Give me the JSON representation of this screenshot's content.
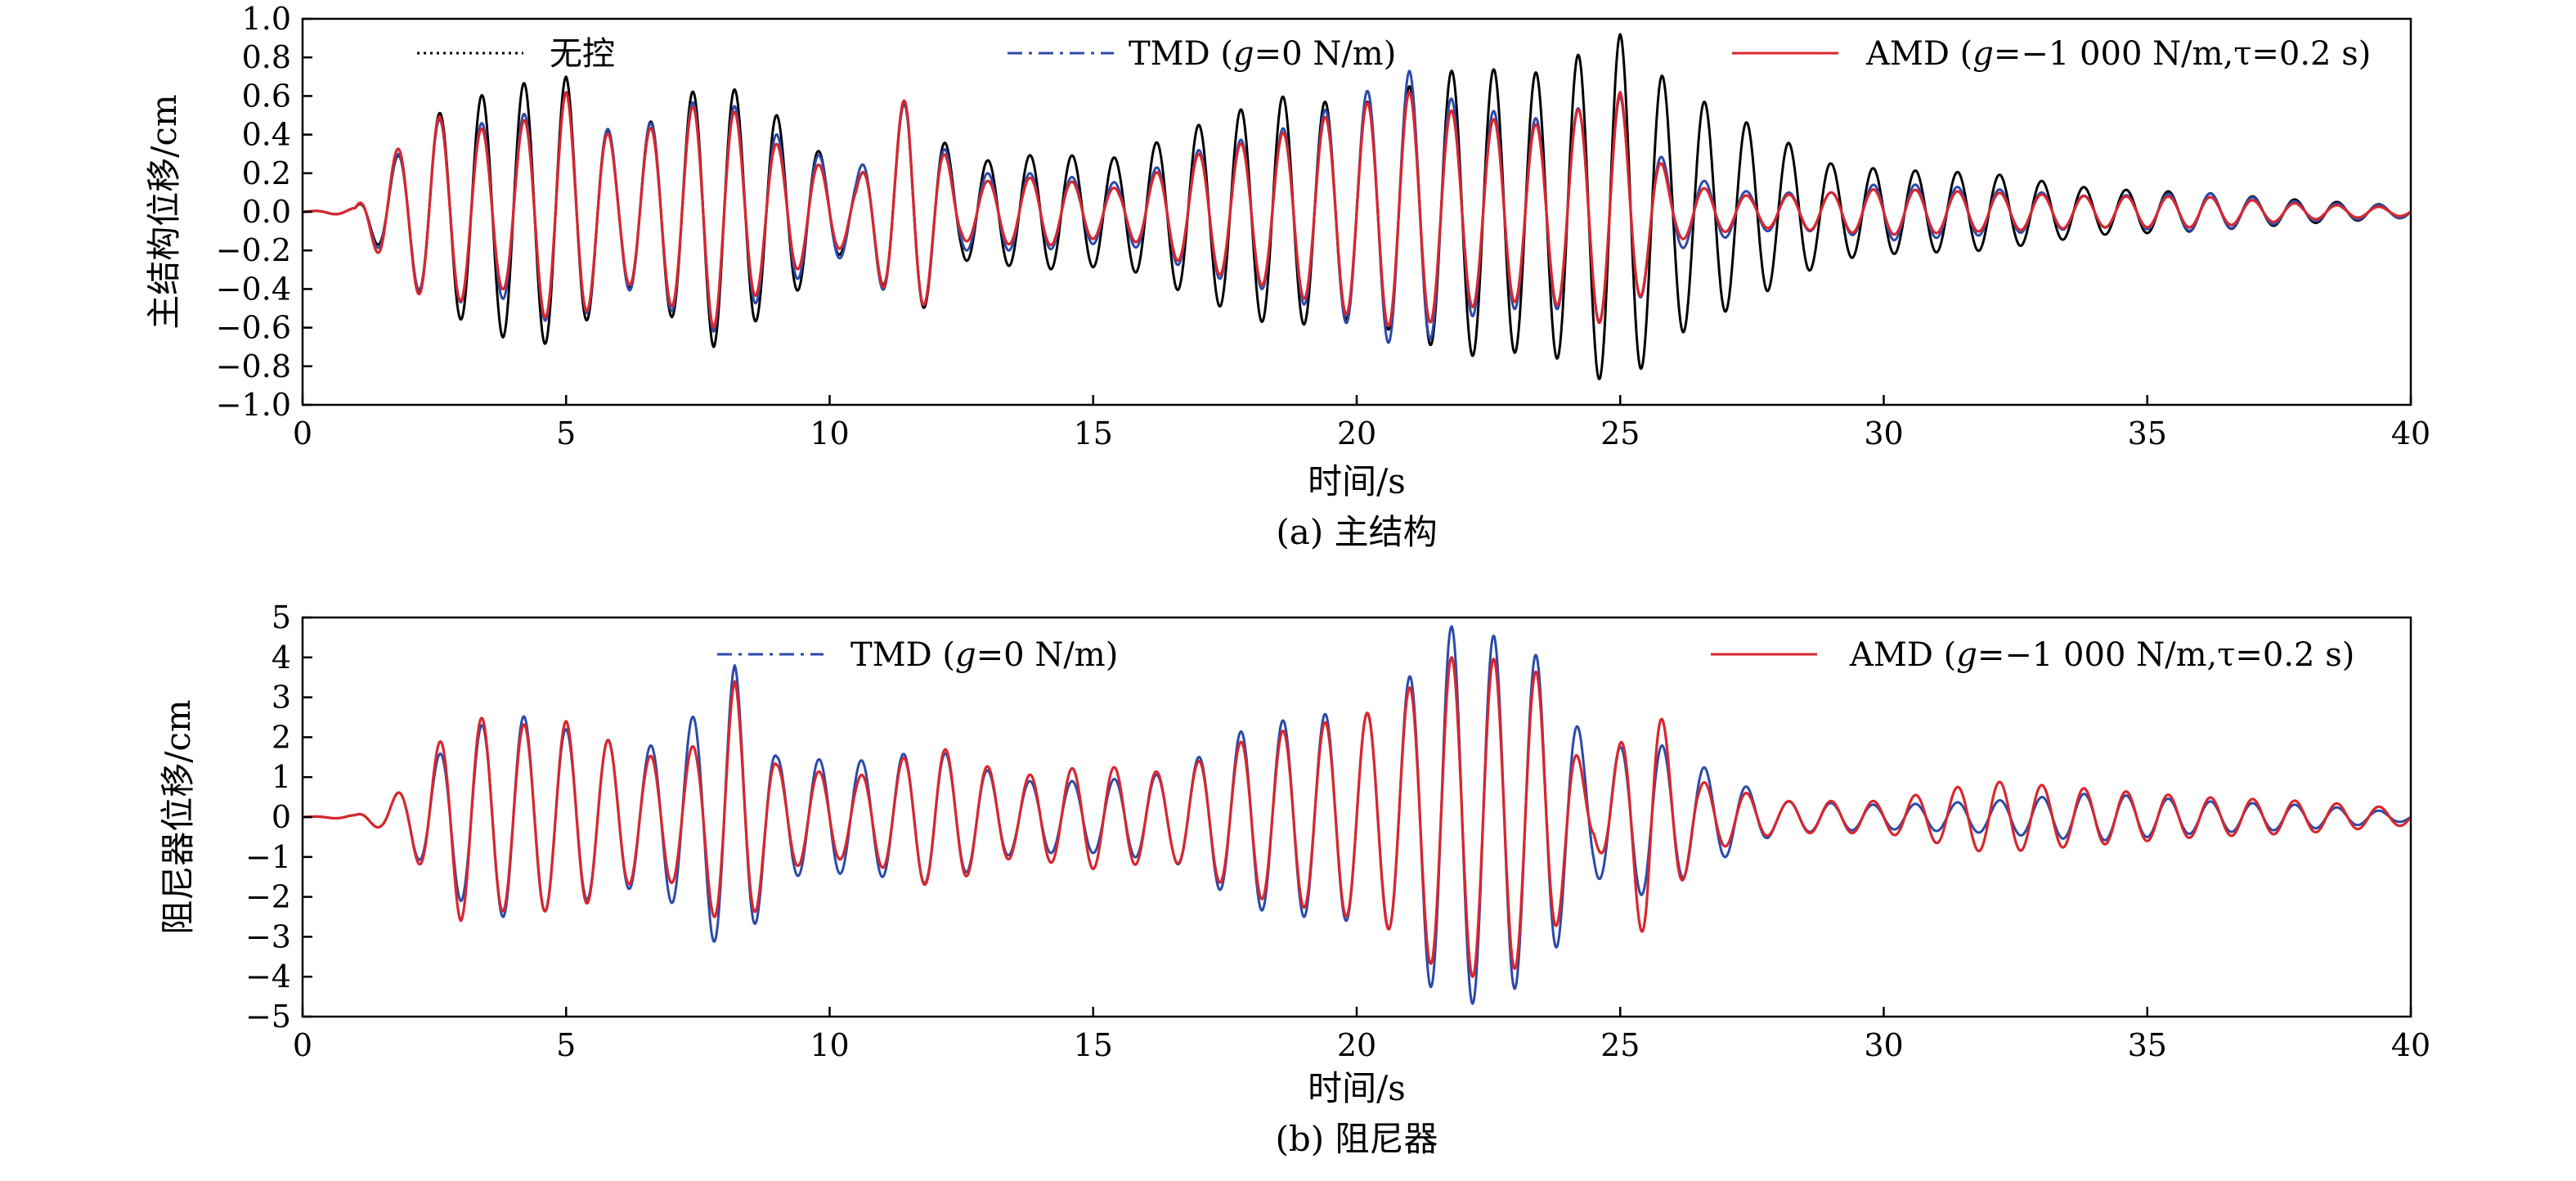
{
  "colors": {
    "uncontrolled": "#000000",
    "tmd": "#2b4aa8",
    "amd": "#d9262e",
    "axis": "#000000"
  },
  "chart_data": [
    {
      "type": "line",
      "caption": "(a) 主结构",
      "xlabel": "时间/s",
      "ylabel": "主结构位移/cm",
      "xlim": [
        0,
        40
      ],
      "ylim": [
        -1.0,
        1.0
      ],
      "x_ticks": [
        "0",
        "5",
        "10",
        "15",
        "20",
        "25",
        "30",
        "35",
        "40"
      ],
      "y_ticks": [
        "1.0",
        "0.8",
        "0.6",
        "0.4",
        "0.2",
        "0.0",
        "−0.2",
        "−0.4",
        "−0.6",
        "−0.8",
        "−1.0"
      ],
      "grid": false,
      "legend_position": "top",
      "legend": [
        {
          "key": "uncontrolled",
          "pre": "无控",
          "it": "",
          "post": ""
        },
        {
          "key": "tmd",
          "pre": "TMD (",
          "it": "g",
          "post": "=0 N/m)"
        },
        {
          "key": "amd",
          "pre": "AMD (",
          "it": "g",
          "post": "=−1 000 N/m,τ=0.2 s)"
        }
      ],
      "series": [
        {
          "key": "uncontrolled",
          "style": "dotted",
          "freq_hz": 1.25,
          "envelope_t": [
            0,
            1.0,
            1.5,
            2.5,
            3.8,
            5.0,
            6.0,
            7.8,
            9.0,
            10.5,
            11.5,
            12.5,
            14.0,
            15.5,
            17.0,
            18.5,
            20.0,
            21.0,
            22.0,
            23.5,
            25.0,
            26.0,
            27.5,
            29.0,
            30.0,
            32.0,
            34.0,
            36.0,
            38.0,
            40.0
          ],
          "envelope_a": [
            0,
            0.02,
            0.2,
            0.5,
            0.65,
            0.7,
            0.35,
            0.7,
            0.5,
            0.15,
            0.6,
            0.25,
            0.3,
            0.28,
            0.45,
            0.6,
            0.55,
            0.65,
            0.75,
            0.72,
            0.92,
            0.65,
            0.45,
            0.25,
            0.22,
            0.2,
            0.12,
            0.1,
            0.06,
            0.03
          ]
        },
        {
          "key": "tmd",
          "style": "dash-dot",
          "freq_hz": 1.25,
          "envelope_t": [
            0,
            1.0,
            1.5,
            2.5,
            3.8,
            5.0,
            6.0,
            7.8,
            9.0,
            10.5,
            11.5,
            12.5,
            14.0,
            15.5,
            17.0,
            18.5,
            20.0,
            21.0,
            22.0,
            23.5,
            25.0,
            26.0,
            27.5,
            29.0,
            30.0,
            32.0,
            34.0,
            36.0,
            38.0,
            40.0
          ],
          "envelope_a": [
            0,
            0.02,
            0.22,
            0.48,
            0.45,
            0.62,
            0.38,
            0.62,
            0.4,
            0.2,
            0.6,
            0.2,
            0.2,
            0.15,
            0.32,
            0.42,
            0.6,
            0.73,
            0.55,
            0.48,
            0.6,
            0.2,
            0.1,
            0.1,
            0.15,
            0.12,
            0.08,
            0.1,
            0.05,
            0.03
          ]
        },
        {
          "key": "amd",
          "style": "solid",
          "freq_hz": 1.25,
          "envelope_t": [
            0,
            1.0,
            1.5,
            2.5,
            3.8,
            5.0,
            6.0,
            7.8,
            9.0,
            10.5,
            11.5,
            12.5,
            14.0,
            15.5,
            17.0,
            18.5,
            20.0,
            21.0,
            22.0,
            23.5,
            25.0,
            26.0,
            27.5,
            29.0,
            30.0,
            32.0,
            34.0,
            36.0,
            38.0,
            40.0
          ],
          "envelope_a": [
            0,
            0.02,
            0.25,
            0.5,
            0.4,
            0.62,
            0.35,
            0.6,
            0.35,
            0.15,
            0.62,
            0.15,
            0.18,
            0.12,
            0.3,
            0.4,
            0.55,
            0.62,
            0.5,
            0.45,
            0.62,
            0.15,
            0.08,
            0.1,
            0.12,
            0.1,
            0.08,
            0.08,
            0.04,
            0.02
          ]
        }
      ]
    },
    {
      "type": "line",
      "caption": "(b) 阻尼器",
      "xlabel": "时间/s",
      "ylabel": "阻尼器位移/cm",
      "xlim": [
        0,
        40
      ],
      "ylim": [
        -5,
        5
      ],
      "x_ticks": [
        "0",
        "5",
        "10",
        "15",
        "20",
        "25",
        "30",
        "35",
        "40"
      ],
      "y_ticks": [
        "5",
        "4",
        "3",
        "2",
        "1",
        "0",
        "−1",
        "−2",
        "−3",
        "−4",
        "−5"
      ],
      "grid": false,
      "legend_position": "top",
      "legend": [
        {
          "key": "tmd",
          "pre": "TMD (",
          "it": "g",
          "post": "=0 N/m)"
        },
        {
          "key": "amd",
          "pre": "AMD (",
          "it": "g",
          "post": "=−1 000 N/m,τ=0.2 s)"
        }
      ],
      "series": [
        {
          "key": "tmd",
          "style": "dash-dot",
          "freq_hz": 1.25,
          "envelope_t": [
            0,
            1.0,
            1.5,
            2.0,
            3.0,
            4.0,
            5.0,
            6.5,
            7.5,
            8.2,
            9.0,
            10.5,
            12.0,
            13.5,
            15.0,
            16.5,
            18.0,
            19.5,
            20.5,
            21.7,
            22.5,
            23.5,
            24.5,
            25.5,
            26.5,
            28.0,
            30.0,
            32.0,
            34.0,
            36.0,
            38.0,
            40.0
          ],
          "envelope_a": [
            0,
            0.05,
            0.3,
            0.8,
            2.1,
            2.6,
            2.2,
            1.7,
            2.6,
            3.8,
            1.5,
            1.4,
            1.7,
            0.9,
            0.9,
            1.1,
            2.3,
            2.6,
            2.6,
            4.8,
            4.6,
            4.0,
            1.5,
            2.0,
            1.3,
            0.4,
            0.3,
            0.4,
            0.6,
            0.4,
            0.3,
            0.1
          ]
        },
        {
          "key": "amd",
          "style": "solid",
          "freq_hz": 1.25,
          "envelope_t": [
            0,
            1.0,
            1.5,
            2.0,
            3.0,
            4.0,
            5.0,
            6.5,
            7.5,
            8.2,
            9.0,
            10.5,
            12.0,
            13.5,
            15.0,
            16.5,
            18.0,
            19.5,
            20.5,
            21.7,
            22.5,
            23.5,
            24.5,
            25.5,
            26.5,
            28.0,
            30.0,
            32.0,
            34.0,
            36.0,
            38.0,
            40.0
          ],
          "envelope_a": [
            0,
            0.05,
            0.3,
            0.8,
            2.6,
            2.3,
            2.4,
            1.5,
            1.8,
            3.4,
            1.3,
            1.0,
            1.8,
            1.0,
            1.3,
            1.1,
            2.0,
            2.4,
            2.7,
            4.0,
            4.0,
            3.6,
            0.6,
            3.1,
            0.9,
            0.4,
            0.4,
            0.9,
            0.7,
            0.5,
            0.4,
            0.2
          ]
        }
      ]
    }
  ]
}
